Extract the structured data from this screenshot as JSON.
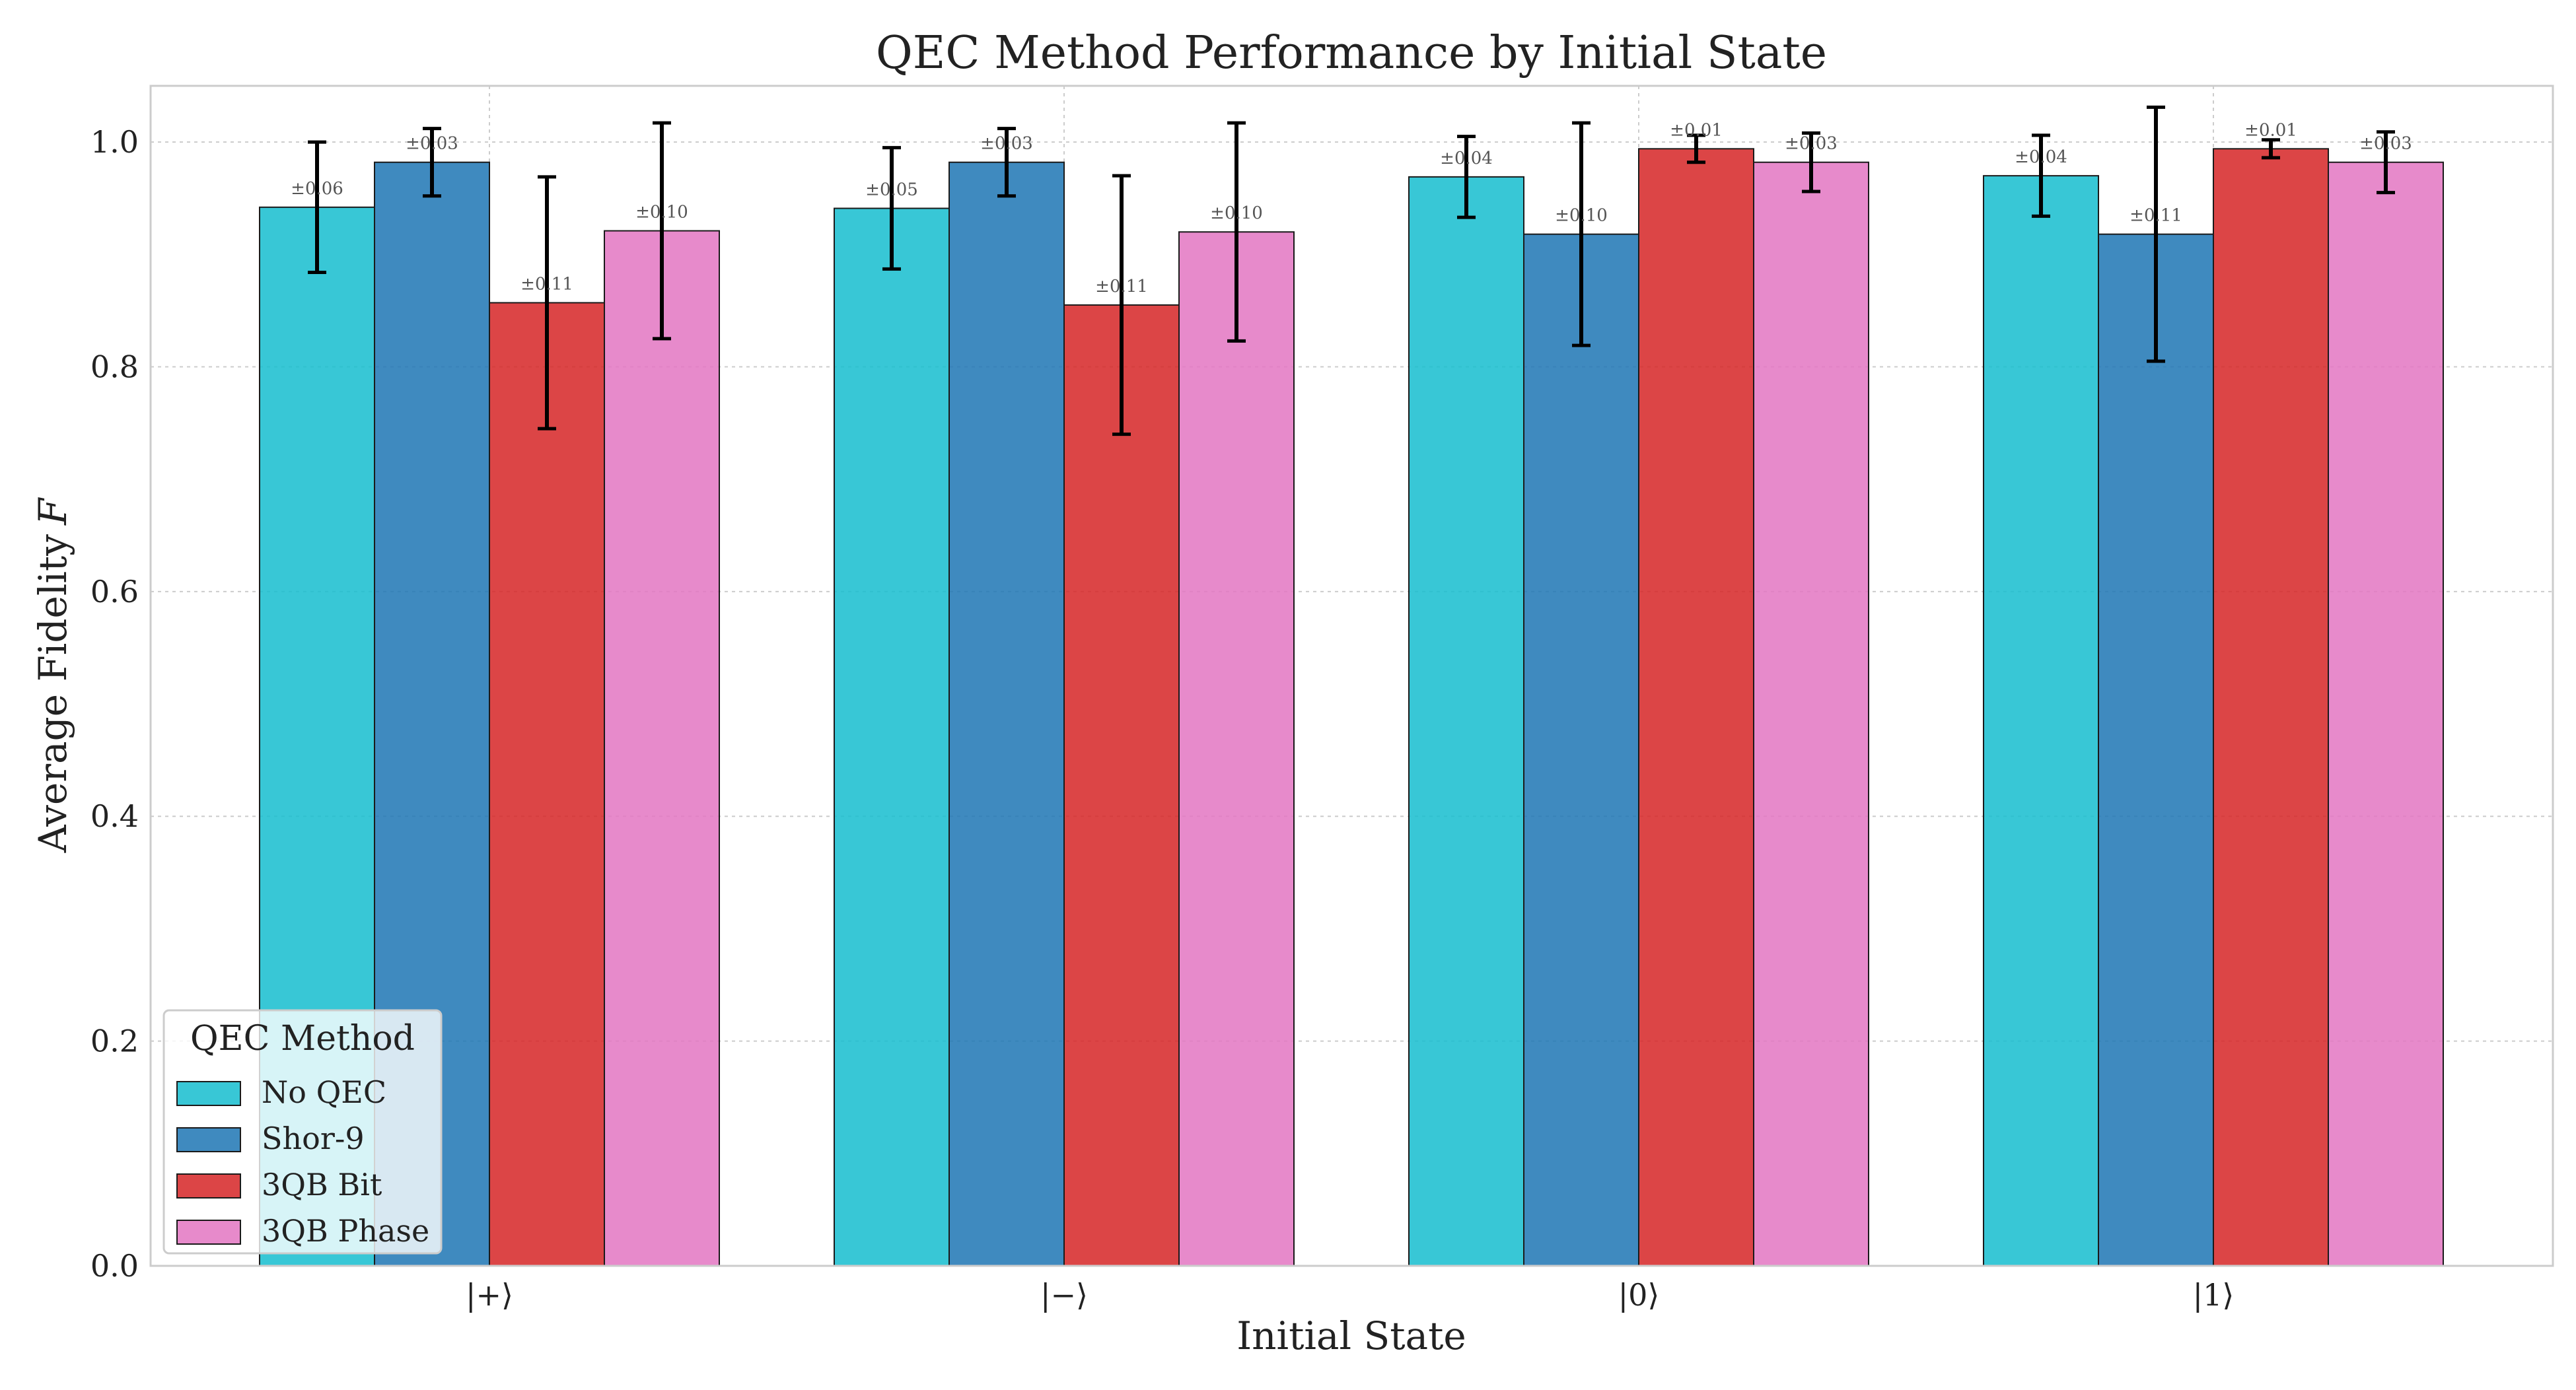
{
  "chart_data": {
    "type": "bar",
    "title": "QEC Method Performance by Initial State",
    "xlabel": "Initial State",
    "ylabel": "Average Fidelity",
    "ylabel_symbol": "F",
    "categories": [
      "|+⟩",
      "|−⟩",
      "|0⟩",
      "|1⟩"
    ],
    "ylim": [
      0.0,
      1.05
    ],
    "yticks": [
      "0.0",
      "0.2",
      "0.4",
      "0.6",
      "0.8",
      "1.0"
    ],
    "grid": true,
    "legend": {
      "title": "QEC Method",
      "placement": "lower-left"
    },
    "series": [
      {
        "name": "No QEC",
        "color": "#17becf",
        "values": [
          0.942,
          0.941,
          0.969,
          0.97
        ],
        "errors": [
          0.058,
          0.054,
          0.036,
          0.036
        ],
        "error_labels": [
          "±0.06",
          "±0.05",
          "±0.04",
          "±0.04"
        ]
      },
      {
        "name": "Shor-9",
        "color": "#1f77b4",
        "values": [
          0.982,
          0.982,
          0.918,
          0.918
        ],
        "errors": [
          0.03,
          0.03,
          0.099,
          0.113
        ],
        "error_labels": [
          "±0.03",
          "±0.03",
          "±0.10",
          "±0.11"
        ]
      },
      {
        "name": "3QB Bit",
        "color": "#d62728",
        "values": [
          0.857,
          0.855,
          0.994,
          0.994
        ],
        "errors": [
          0.112,
          0.115,
          0.012,
          0.008
        ],
        "error_labels": [
          "±0.11",
          "±0.11",
          "±0.01",
          "±0.01"
        ]
      },
      {
        "name": "3QB Phase",
        "color": "#e377c2",
        "values": [
          0.921,
          0.92,
          0.982,
          0.982
        ],
        "errors": [
          0.096,
          0.097,
          0.026,
          0.027
        ],
        "error_labels": [
          "±0.10",
          "±0.10",
          "±0.03",
          "±0.03"
        ]
      }
    ]
  }
}
